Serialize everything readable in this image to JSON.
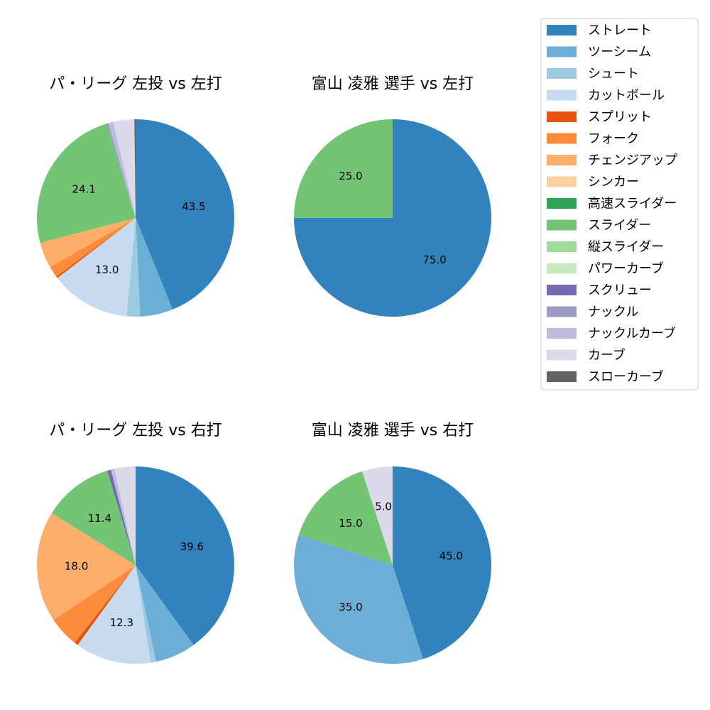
{
  "pitch_types": [
    {
      "name": "ストレート",
      "color": "#3182bd"
    },
    {
      "name": "ツーシーム",
      "color": "#6baed6"
    },
    {
      "name": "シュート",
      "color": "#9ecae1"
    },
    {
      "name": "カットボール",
      "color": "#c6dbef"
    },
    {
      "name": "スプリット",
      "color": "#e6550d"
    },
    {
      "name": "フォーク",
      "color": "#fd8d3c"
    },
    {
      "name": "チェンジアップ",
      "color": "#fdae6b"
    },
    {
      "name": "シンカー",
      "color": "#fdd0a2"
    },
    {
      "name": "高速スライダー",
      "color": "#31a354"
    },
    {
      "name": "スライダー",
      "color": "#74c476"
    },
    {
      "name": "縦スライダー",
      "color": "#a1d99b"
    },
    {
      "name": "パワーカーブ",
      "color": "#c7e9c0"
    },
    {
      "name": "スクリュー",
      "color": "#756bb1"
    },
    {
      "name": "ナックル",
      "color": "#9e9ac8"
    },
    {
      "name": "ナックルカーブ",
      "color": "#bcbddc"
    },
    {
      "name": "カーブ",
      "color": "#dadaeb"
    },
    {
      "name": "スローカーブ",
      "color": "#636363"
    }
  ],
  "chart_data": [
    {
      "type": "pie",
      "title": "パ・リーグ 左投 vs 左打",
      "slices": [
        {
          "label": "ストレート",
          "value": 43.5,
          "show_label": true
        },
        {
          "label": "ツーシーム",
          "value": 5.3,
          "show_label": false
        },
        {
          "label": "シュート",
          "value": 2.2,
          "show_label": false
        },
        {
          "label": "カットボール",
          "value": 13.0,
          "show_label": true
        },
        {
          "label": "スプリット",
          "value": 0.3,
          "show_label": false
        },
        {
          "label": "フォーク",
          "value": 1.8,
          "show_label": false
        },
        {
          "label": "チェンジアップ",
          "value": 4.2,
          "show_label": false
        },
        {
          "label": "スライダー",
          "value": 24.1,
          "show_label": true
        },
        {
          "label": "ナックル",
          "value": 0.3,
          "show_label": false
        },
        {
          "label": "ナックルカーブ",
          "value": 0.8,
          "show_label": false
        },
        {
          "label": "カーブ",
          "value": 3.4,
          "show_label": false
        },
        {
          "label": "スローカーブ",
          "value": 0.2,
          "show_label": false
        }
      ]
    },
    {
      "type": "pie",
      "title": "富山 凌雅 選手 vs 左打",
      "slices": [
        {
          "label": "ストレート",
          "value": 75.0,
          "show_label": true
        },
        {
          "label": "スライダー",
          "value": 25.0,
          "show_label": true
        }
      ]
    },
    {
      "type": "pie",
      "title": "パ・リーグ 左投 vs 右打",
      "slices": [
        {
          "label": "ストレート",
          "value": 39.6,
          "show_label": true
        },
        {
          "label": "ツーシーム",
          "value": 6.6,
          "show_label": false
        },
        {
          "label": "シュート",
          "value": 0.9,
          "show_label": false
        },
        {
          "label": "カットボール",
          "value": 12.3,
          "show_label": true
        },
        {
          "label": "スプリット",
          "value": 0.6,
          "show_label": false
        },
        {
          "label": "フォーク",
          "value": 5.0,
          "show_label": false
        },
        {
          "label": "チェンジアップ",
          "value": 18.0,
          "show_label": true
        },
        {
          "label": "スライダー",
          "value": 11.4,
          "show_label": true
        },
        {
          "label": "スクリュー",
          "value": 0.6,
          "show_label": false
        },
        {
          "label": "ナックルカーブ",
          "value": 0.6,
          "show_label": false
        },
        {
          "label": "カーブ",
          "value": 3.4,
          "show_label": false
        }
      ]
    },
    {
      "type": "pie",
      "title": "富山 凌雅 選手 vs 右打",
      "slices": [
        {
          "label": "ストレート",
          "value": 45.0,
          "show_label": true
        },
        {
          "label": "ツーシーム",
          "value": 35.0,
          "show_label": true
        },
        {
          "label": "スライダー",
          "value": 15.0,
          "show_label": true
        },
        {
          "label": "カーブ",
          "value": 5.0,
          "show_label": true
        }
      ]
    }
  ]
}
